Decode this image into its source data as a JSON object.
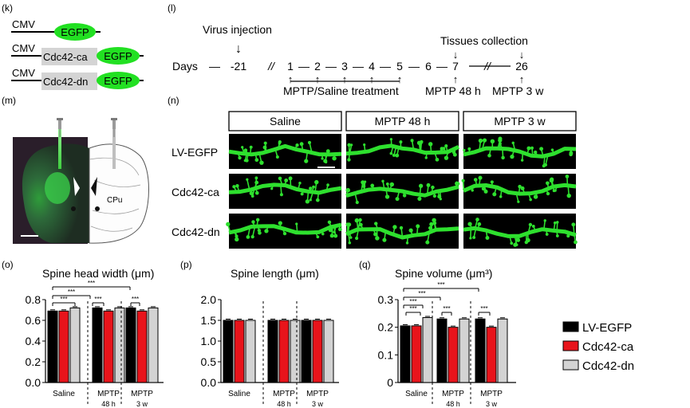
{
  "panels": {
    "k": "(k)",
    "l": "(l)",
    "m": "(m)",
    "n": "(n)",
    "o": "(o)",
    "p": "(p)",
    "q": "(q)"
  },
  "constructs": {
    "promoter": "CMV",
    "egfp": "EGFP",
    "ca": "Cdc42-ca",
    "dn": "Cdc42-dn",
    "egfp_color": "#22e022",
    "gray_box": "#d4d4d4"
  },
  "timeline": {
    "virus_injection": "Virus injection",
    "tissues_collection": "Tissues collection",
    "days_label": "Days",
    "days": [
      "-21",
      "1",
      "2",
      "3",
      "4",
      "5",
      "6",
      "7",
      "26"
    ],
    "dash": "—",
    "break": "//",
    "mptp_saline": "MPTP/Saline treatment",
    "mptp_48h": "MPTP 48 h",
    "mptp_3w": "MPTP 3 w"
  },
  "brain": {
    "region_label": "CPu"
  },
  "micrographs": {
    "columns": [
      "Saline",
      "MPTP 48 h",
      "MPTP 3 w"
    ],
    "rows": [
      "LV-EGFP",
      "Cdc42-ca",
      "Cdc42-dn"
    ]
  },
  "chart_data": [
    {
      "type": "bar",
      "title": "Spine head width (μm)",
      "categories": [
        "Saline",
        "MPTP\n48 h",
        "MPTP\n3 w"
      ],
      "ylim": [
        0,
        0.8
      ],
      "yticks": [
        "0.0",
        "0.2",
        "0.4",
        "0.6",
        "0.8"
      ],
      "series": [
        {
          "name": "LV-EGFP",
          "values": [
            0.69,
            0.72,
            0.72
          ]
        },
        {
          "name": "Cdc42-ca",
          "values": [
            0.69,
            0.69,
            0.69
          ]
        },
        {
          "name": "Cdc42-dn",
          "values": [
            0.72,
            0.72,
            0.72
          ]
        }
      ],
      "annotations": [
        "***",
        "***",
        "***",
        "***",
        "***"
      ]
    },
    {
      "type": "bar",
      "title": "Spine length (μm)",
      "categories": [
        "Saline",
        "MPTP\n48 h",
        "MPTP\n3 w"
      ],
      "ylim": [
        0,
        2.0
      ],
      "yticks": [
        "0.0",
        "0.5",
        "1.0",
        "1.5",
        "2.0"
      ],
      "series": [
        {
          "name": "LV-EGFP",
          "values": [
            1.5,
            1.5,
            1.5
          ]
        },
        {
          "name": "Cdc42-ca",
          "values": [
            1.5,
            1.5,
            1.5
          ]
        },
        {
          "name": "Cdc42-dn",
          "values": [
            1.5,
            1.5,
            1.5
          ]
        }
      ],
      "annotations": []
    },
    {
      "type": "bar",
      "title": "Spine volume (μm³)",
      "categories": [
        "Saline",
        "MPTP\n48 h",
        "MPTP\n3 w"
      ],
      "ylim": [
        0,
        0.3
      ],
      "yticks": [
        "0",
        "0.1",
        "0.2",
        "0.3"
      ],
      "series": [
        {
          "name": "LV-EGFP",
          "values": [
            0.205,
            0.23,
            0.23
          ]
        },
        {
          "name": "Cdc42-ca",
          "values": [
            0.205,
            0.2,
            0.2
          ]
        },
        {
          "name": "Cdc42-dn",
          "values": [
            0.235,
            0.23,
            0.23
          ]
        }
      ],
      "annotations": [
        "***",
        "***",
        "***",
        "***",
        "***",
        "***"
      ]
    }
  ],
  "legend": {
    "items": [
      {
        "name": "LV-EGFP",
        "color": "#000000"
      },
      {
        "name": "Cdc42-ca",
        "color": "#e8141b"
      },
      {
        "name": "Cdc42-dn",
        "color": "#d3d3d3"
      }
    ]
  }
}
